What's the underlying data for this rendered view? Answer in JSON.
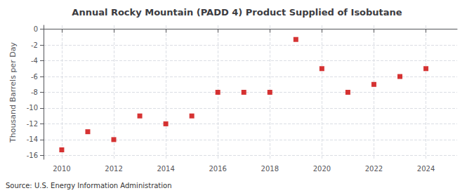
{
  "chart_data": {
    "type": "scatter",
    "title": "Annual Rocky Mountain (PADD 4) Product Supplied of Isobutane",
    "ylabel": "Thousand Barrels per Day",
    "source": "Source: U.S. Energy Information Administration",
    "x": [
      2010,
      2011,
      2012,
      2013,
      2014,
      2015,
      2016,
      2017,
      2018,
      2019,
      2020,
      2021,
      2022,
      2023,
      2024
    ],
    "values": [
      -15.3,
      -13.0,
      -14.0,
      -11.0,
      -12.0,
      -11.0,
      -8.0,
      -8.0,
      -8.0,
      -1.3,
      -5.0,
      -8.0,
      -7.0,
      -6.0,
      -5.0
    ],
    "color": "#cc0000",
    "marker": "square",
    "xlim": [
      2009.3,
      2025.2
    ],
    "xticks": [
      2010,
      2012,
      2014,
      2016,
      2018,
      2020,
      2022,
      2024
    ],
    "ylim": [
      -16.5,
      0.5
    ],
    "yticks": [
      0,
      -2,
      -4,
      -6,
      -8,
      -10,
      -12,
      -14,
      -16
    ],
    "grid": true
  }
}
